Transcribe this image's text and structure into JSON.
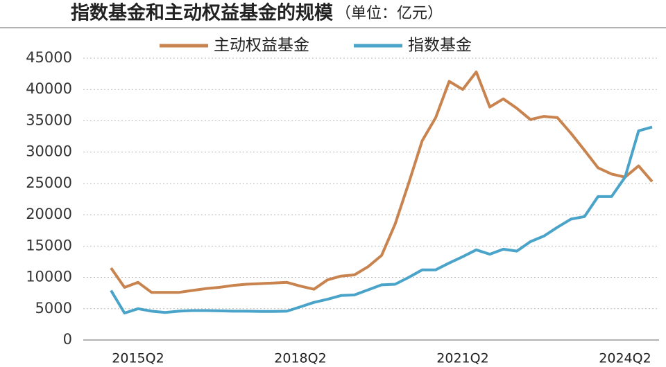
{
  "chart_data": {
    "type": "line",
    "title": "指数基金和主动权益基金的规模",
    "subtitle": "（单位：亿元）",
    "categories": [
      null,
      null,
      "2015Q2",
      null,
      null,
      null,
      null,
      null,
      null,
      null,
      null,
      null,
      null,
      null,
      "2018Q2",
      null,
      null,
      null,
      null,
      null,
      null,
      null,
      null,
      null,
      null,
      null,
      "2021Q2",
      null,
      null,
      null,
      null,
      null,
      null,
      null,
      null,
      null,
      null,
      null,
      "2024Q2",
      null,
      null
    ],
    "series": [
      {
        "name": "主动权益基金",
        "color": "#c8834e",
        "values": [
          11500,
          8400,
          9200,
          7600,
          7600,
          7600,
          7900,
          8200,
          8400,
          8700,
          8900,
          9000,
          9100,
          9200,
          8600,
          8100,
          9600,
          10200,
          10400,
          11700,
          13500,
          18500,
          25000,
          31800,
          35500,
          41300,
          40000,
          42800,
          37200,
          38500,
          37000,
          35200,
          35700,
          35500,
          33000,
          30300,
          27500,
          26500,
          26000,
          27800,
          25300
        ]
      },
      {
        "name": "指数基金",
        "color": "#4aa3c8",
        "values": [
          7900,
          4300,
          5000,
          4600,
          4400,
          4600,
          4700,
          4700,
          4650,
          4600,
          4600,
          4550,
          4550,
          4600,
          5300,
          6000,
          6500,
          7100,
          7200,
          8000,
          8800,
          8900,
          10000,
          11200,
          11200,
          12300,
          13300,
          14400,
          13700,
          14500,
          14200,
          15700,
          16600,
          18000,
          19300,
          19700,
          22900,
          22900,
          26000,
          33400,
          34000
        ]
      }
    ],
    "ylim": [
      0,
      45000
    ],
    "yticks": [
      0,
      5000,
      10000,
      15000,
      20000,
      25000,
      30000,
      35000,
      40000,
      45000
    ],
    "grid": true,
    "legend": "top"
  }
}
